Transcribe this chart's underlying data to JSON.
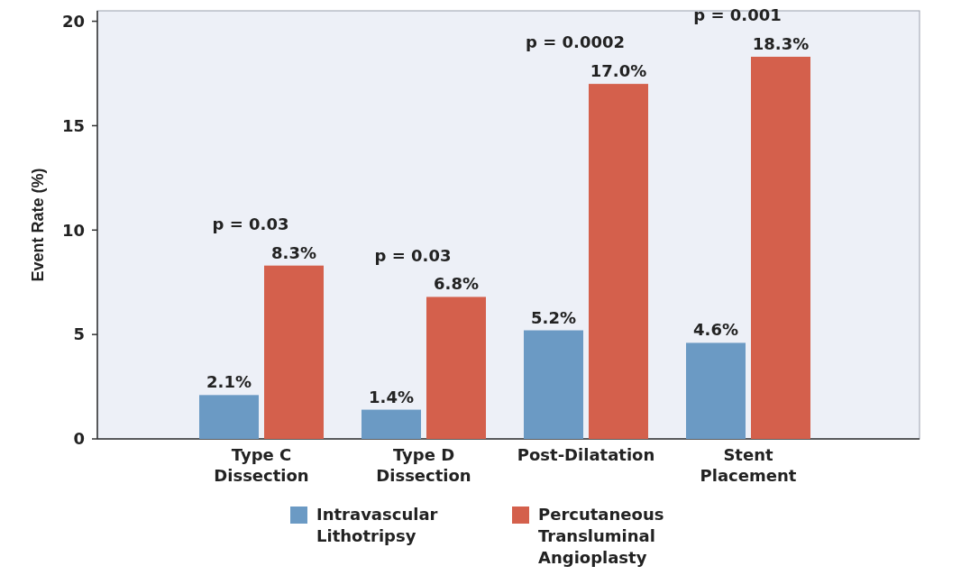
{
  "chart_data": {
    "type": "bar",
    "ylabel": "Event Rate (%)",
    "categories": [
      "Type C Dissection",
      "Type D Dissection",
      "Post-Dilatation",
      "Stent Placement"
    ],
    "series": [
      {
        "name": "Intravascular Lithotripsy",
        "color": "#6b9ac4",
        "values": [
          2.1,
          1.4,
          5.2,
          4.6
        ]
      },
      {
        "name": "Percutaneous Transluminal Angioplasty",
        "color": "#d4604c",
        "values": [
          8.3,
          6.8,
          17.0,
          18.3
        ]
      }
    ],
    "value_labels": [
      [
        "2.1%",
        "1.4%",
        "5.2%",
        "4.6%"
      ],
      [
        "8.3%",
        "6.8%",
        "17.0%",
        "18.3%"
      ]
    ],
    "annotations": [
      "p = 0.03",
      "p = 0.03",
      "p = 0.0002",
      "p = 0.001"
    ],
    "ylim": [
      0,
      20.5
    ],
    "yticks": [
      0,
      5,
      10,
      15,
      20
    ],
    "grid": false,
    "legend": "bottom"
  }
}
